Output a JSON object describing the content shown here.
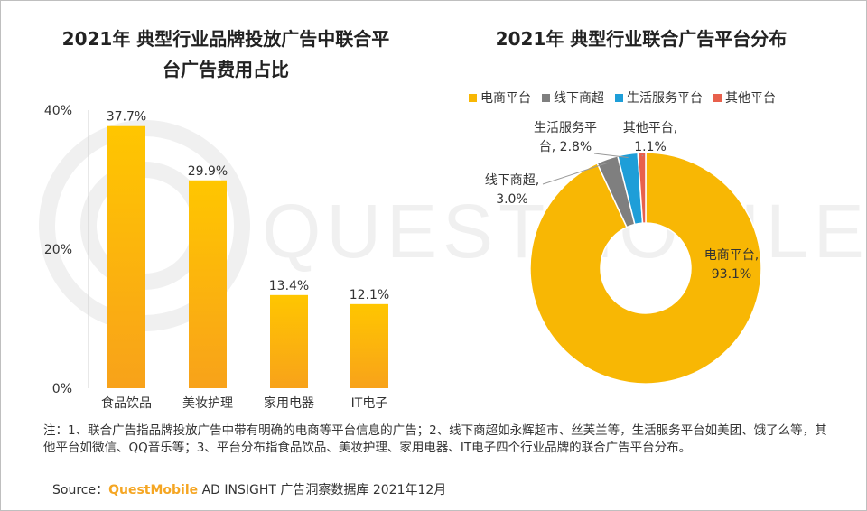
{
  "bar_chart": {
    "title_line1": "2021年 典型行业品牌投放广告中联合平",
    "title_line2": "台广告费用占比"
  },
  "donut_chart": {
    "title": "2021年 典型行业联合广告平台分布"
  },
  "watermark": "QUESTMOBILE",
  "note": "注：1、联合广告指品牌投放广告中带有明确的电商等平台信息的广告；2、线下商超如永辉超市、丝芙兰等，生活服务平台如美团、饿了么等，其他平台如微信、QQ音乐等；3、平台分布指食品饮品、美妆护理、家用电器、IT电子四个行业品牌的联合广告平台分布。",
  "source": {
    "prefix": "Source：",
    "brand": "QuestMobile",
    "suffix": " AD INSIGHT 广告洞察数据库 2021年12月"
  },
  "colors": {
    "bar": "#ffc000",
    "ecommerce": "#f8b704",
    "offline": "#7f7f7f",
    "life": "#1e9ed8",
    "other": "#e8604c"
  },
  "chart_data": [
    {
      "type": "bar",
      "title": "2021年 典型行业品牌投放广告中联合平台广告费用占比",
      "categories": [
        "食品饮品",
        "美妆护理",
        "家用电器",
        "IT电子"
      ],
      "values": [
        37.7,
        29.9,
        13.4,
        12.1
      ],
      "data_labels": [
        "37.7%",
        "29.9%",
        "13.4%",
        "12.1%"
      ],
      "yticks": [
        "40%",
        "20%",
        "0%"
      ],
      "ylim": [
        0,
        40
      ],
      "grid": false
    },
    {
      "type": "pie",
      "subtype": "donut",
      "title": "2021年 典型行业联合广告平台分布",
      "legend_position": "top",
      "legend": [
        "电商平台",
        "线下商超",
        "生活服务平台",
        "其他平台"
      ],
      "slices": [
        {
          "name": "电商平台",
          "value": 93.1,
          "label_lines": [
            "电商平台,",
            "93.1%"
          ],
          "color": "#f8b704"
        },
        {
          "name": "线下商超",
          "value": 3.0,
          "label_lines": [
            "线下商超,",
            "3.0%"
          ],
          "color": "#7f7f7f"
        },
        {
          "name": "生活服务平台",
          "value": 2.8,
          "label_lines": [
            "生活服务平",
            "台, 2.8%"
          ],
          "color": "#1e9ed8"
        },
        {
          "name": "其他平台",
          "value": 1.1,
          "label_lines": [
            "其他平台,",
            "1.1%"
          ],
          "color": "#e8604c"
        }
      ]
    }
  ]
}
